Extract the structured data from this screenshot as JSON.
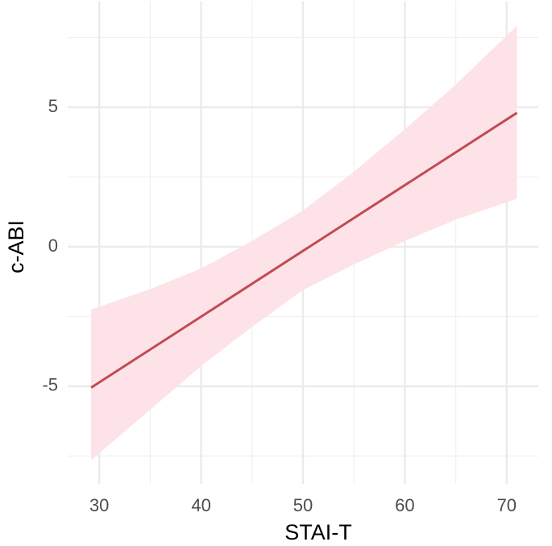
{
  "chart_data": {
    "type": "line",
    "x_label": "STAI-T",
    "y_label": "c-ABI",
    "xlim": [
      26.9,
      73.1
    ],
    "ylim": [
      -8.5,
      8.8
    ],
    "xticks": [
      30,
      40,
      50,
      60,
      70
    ],
    "yticks": [
      -5,
      0,
      5
    ],
    "xminor": [
      35,
      45,
      55,
      65
    ],
    "yminor": [
      -7.5,
      -2.5,
      2.5,
      7.5
    ],
    "grid": true,
    "series": [
      {
        "x": [
          29.2,
          71
        ],
        "values": [
          -5.05,
          4.8
        ],
        "color": "#c24a55"
      }
    ],
    "band": {
      "x": [
        29.2,
        35,
        40,
        45,
        50,
        55,
        60,
        65,
        71
      ],
      "upper": [
        -2.25,
        -1.52,
        -0.78,
        0.21,
        1.3,
        2.69,
        4.21,
        5.81,
        7.92
      ],
      "lower": [
        -7.65,
        -5.84,
        -4.27,
        -2.87,
        -1.55,
        -0.63,
        0.21,
        0.97,
        1.72
      ],
      "color": "#fde2e7"
    }
  }
}
